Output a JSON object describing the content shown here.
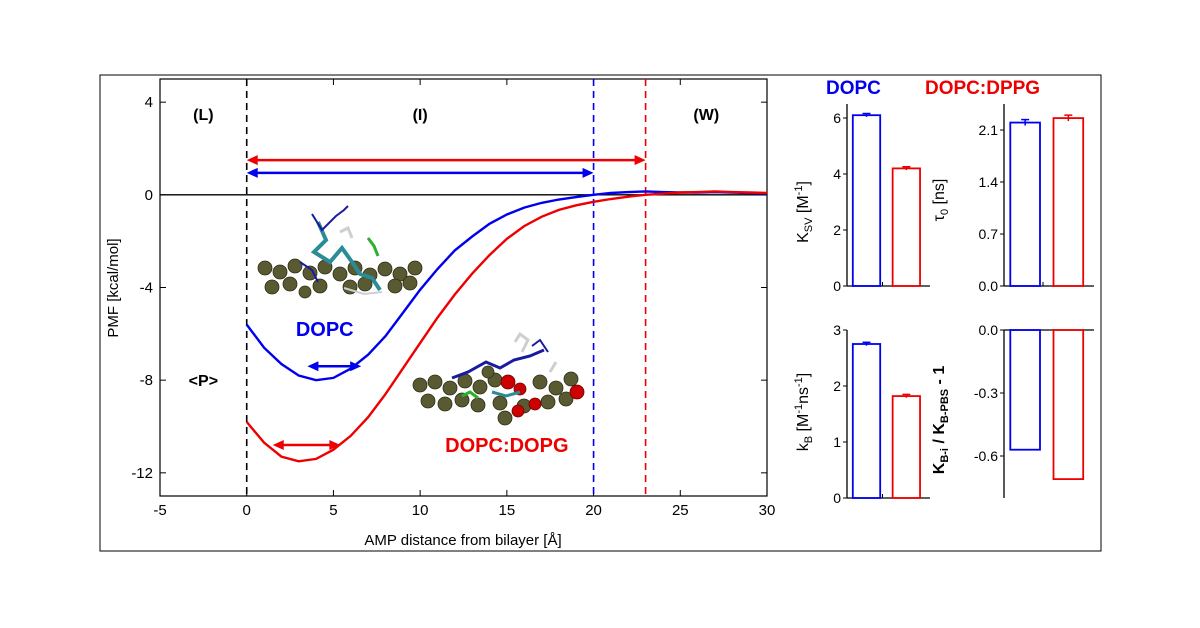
{
  "chart_data": [
    {
      "id": "pmf",
      "type": "line",
      "xlabel": "AMP distance from bilayer [Å]",
      "ylabel": "PMF [kcal/mol]",
      "xlim": [
        -5,
        30
      ],
      "ylim": [
        -13,
        5
      ],
      "xticks": [
        -5,
        0,
        5,
        10,
        15,
        20,
        25,
        30
      ],
      "yticks": [
        4,
        0,
        -4,
        -8,
        -12
      ],
      "region_labels": [
        {
          "text": "(L)",
          "x": -2.5,
          "y": 3.5
        },
        {
          "text": "(I)",
          "x": 10,
          "y": 3.5
        },
        {
          "text": "(W)",
          "x": 26.5,
          "y": 3.5
        },
        {
          "text": "<P>",
          "x": -2.5,
          "y": -8.0
        }
      ],
      "vlines": [
        {
          "x": 0,
          "color": "#000000",
          "style": "dashed"
        },
        {
          "x": 20,
          "color": "#0000ee",
          "style": "dashed"
        },
        {
          "x": 23,
          "color": "#ee0000",
          "style": "dashed"
        }
      ],
      "hline": 0,
      "ranges": [
        {
          "x1": 0,
          "x2": 23,
          "y": 1.5,
          "color": "#ee0000"
        },
        {
          "x1": 0,
          "x2": 20,
          "y": 0.95,
          "color": "#0000ee"
        },
        {
          "x1": 3.5,
          "x2": 6.6,
          "y": -7.4,
          "color": "#0000ee"
        },
        {
          "x1": 1.5,
          "x2": 5.4,
          "y": -10.8,
          "color": "#ee0000"
        }
      ],
      "series": [
        {
          "name": "DOPC",
          "label": "DOPC",
          "label_pos": [
            4.5,
            -5.8
          ],
          "color": "#0000ee",
          "points": [
            [
              0,
              -5.6
            ],
            [
              1,
              -6.6
            ],
            [
              2,
              -7.3
            ],
            [
              3,
              -7.8
            ],
            [
              4,
              -8.0
            ],
            [
              5,
              -7.9
            ],
            [
              6,
              -7.5
            ],
            [
              7,
              -6.9
            ],
            [
              8,
              -6.1
            ],
            [
              9,
              -5.1
            ],
            [
              10,
              -4.1
            ],
            [
              11,
              -3.2
            ],
            [
              12,
              -2.4
            ],
            [
              13,
              -1.8
            ],
            [
              14,
              -1.25
            ],
            [
              15,
              -0.85
            ],
            [
              16,
              -0.55
            ],
            [
              17,
              -0.35
            ],
            [
              18,
              -0.2
            ],
            [
              19,
              -0.1
            ],
            [
              20,
              0.0
            ],
            [
              21,
              0.08
            ],
            [
              22,
              0.12
            ],
            [
              23,
              0.15
            ],
            [
              24,
              0.12
            ],
            [
              25,
              0.1
            ],
            [
              26,
              0.1
            ],
            [
              27,
              0.12
            ],
            [
              28,
              0.1
            ],
            [
              29,
              0.08
            ],
            [
              30,
              0.05
            ]
          ]
        },
        {
          "name": "DOPC:DOPG",
          "label": "DOPC:DOPG",
          "label_pos": [
            15.0,
            -10.8
          ],
          "color": "#ee0000",
          "points": [
            [
              0,
              -9.8
            ],
            [
              1,
              -10.7
            ],
            [
              2,
              -11.3
            ],
            [
              3,
              -11.5
            ],
            [
              4,
              -11.4
            ],
            [
              5,
              -11.0
            ],
            [
              6,
              -10.4
            ],
            [
              7,
              -9.6
            ],
            [
              8,
              -8.6
            ],
            [
              9,
              -7.5
            ],
            [
              10,
              -6.4
            ],
            [
              11,
              -5.3
            ],
            [
              12,
              -4.3
            ],
            [
              13,
              -3.4
            ],
            [
              14,
              -2.6
            ],
            [
              15,
              -1.9
            ],
            [
              16,
              -1.35
            ],
            [
              17,
              -0.95
            ],
            [
              18,
              -0.65
            ],
            [
              19,
              -0.45
            ],
            [
              20,
              -0.3
            ],
            [
              21,
              -0.18
            ],
            [
              22,
              -0.08
            ],
            [
              23,
              0.0
            ],
            [
              24,
              0.05
            ],
            [
              25,
              0.1
            ],
            [
              26,
              0.12
            ],
            [
              27,
              0.15
            ],
            [
              28,
              0.12
            ],
            [
              29,
              0.1
            ],
            [
              30,
              0.08
            ]
          ]
        }
      ]
    },
    {
      "id": "ksv",
      "type": "bar",
      "ylabel": "Ksv [M-1]",
      "ylim": [
        0,
        6.5
      ],
      "yticks": [
        0,
        2,
        4,
        6
      ],
      "categories": [
        "DOPC",
        "DOPC:DPPG"
      ],
      "values": [
        6.1,
        4.2
      ],
      "errors": [
        0.06,
        0.06
      ],
      "colors": [
        "#0000ee",
        "#ee0000"
      ]
    },
    {
      "id": "tau0",
      "type": "bar",
      "ylabel": "τ0 [ns]",
      "ylim": [
        0,
        2.45
      ],
      "yticks": [
        0.0,
        0.7,
        1.4,
        2.1
      ],
      "categories": [
        "DOPC",
        "DOPC:DPPG"
      ],
      "values": [
        2.2,
        2.26
      ],
      "errors": [
        0.04,
        0.04
      ],
      "colors": [
        "#0000ee",
        "#ee0000"
      ]
    },
    {
      "id": "kb",
      "type": "bar",
      "ylabel": "kB [M-1ns-1]",
      "ylim": [
        0,
        3.0
      ],
      "yticks": [
        0,
        1,
        2,
        3
      ],
      "categories": [
        "DOPC",
        "DOPC:DPPG"
      ],
      "values": [
        2.75,
        1.82
      ],
      "errors": [
        0.03,
        0.03
      ],
      "colors": [
        "#0000ee",
        "#ee0000"
      ]
    },
    {
      "id": "kbratio",
      "type": "bar",
      "ylabel": "KB-i / KB-PBS - 1",
      "ylim": [
        -0.8,
        0.0
      ],
      "yticks": [
        0.0,
        -0.3,
        -0.6
      ],
      "categories": [
        "DOPC",
        "DOPC:DPPG"
      ],
      "values": [
        -0.57,
        -0.71
      ],
      "colors": [
        "#0000ee",
        "#ee0000"
      ]
    }
  ],
  "bar_legend": {
    "DOPC": {
      "text": "DOPC",
      "color": "#0000ee"
    },
    "DOPC:DPPG": {
      "text": "DOPC:DPPG",
      "color": "#ee0000"
    }
  },
  "axis_labels": {
    "pmf_x": "AMP distance from bilayer [Å]",
    "pmf_y": "PMF [kcal/mol]",
    "ksv_main": "K",
    "ksv_sub": "SV",
    "ksv_unit": " [M",
    "ksv_exp": "-1",
    "ksv_end": "]",
    "tau_main": "τ",
    "tau_sub": "0",
    "tau_unit": " [ns]",
    "kb_main": "k",
    "kb_sub": "B",
    "kb_unit1": " [M",
    "kb_exp1": "-1",
    "kb_unit2": "ns",
    "kb_exp2": "-1",
    "kb_end": "]",
    "ratio_k1": "K",
    "ratio_sub1": "B-i",
    "ratio_mid": " / K",
    "ratio_sub2": "B-PBS",
    "ratio_end": " - 1"
  },
  "colors": {
    "blue": "#0000ee",
    "red": "#ee0000",
    "bead": "#5a5a32",
    "bead_red": "#cc0000"
  }
}
